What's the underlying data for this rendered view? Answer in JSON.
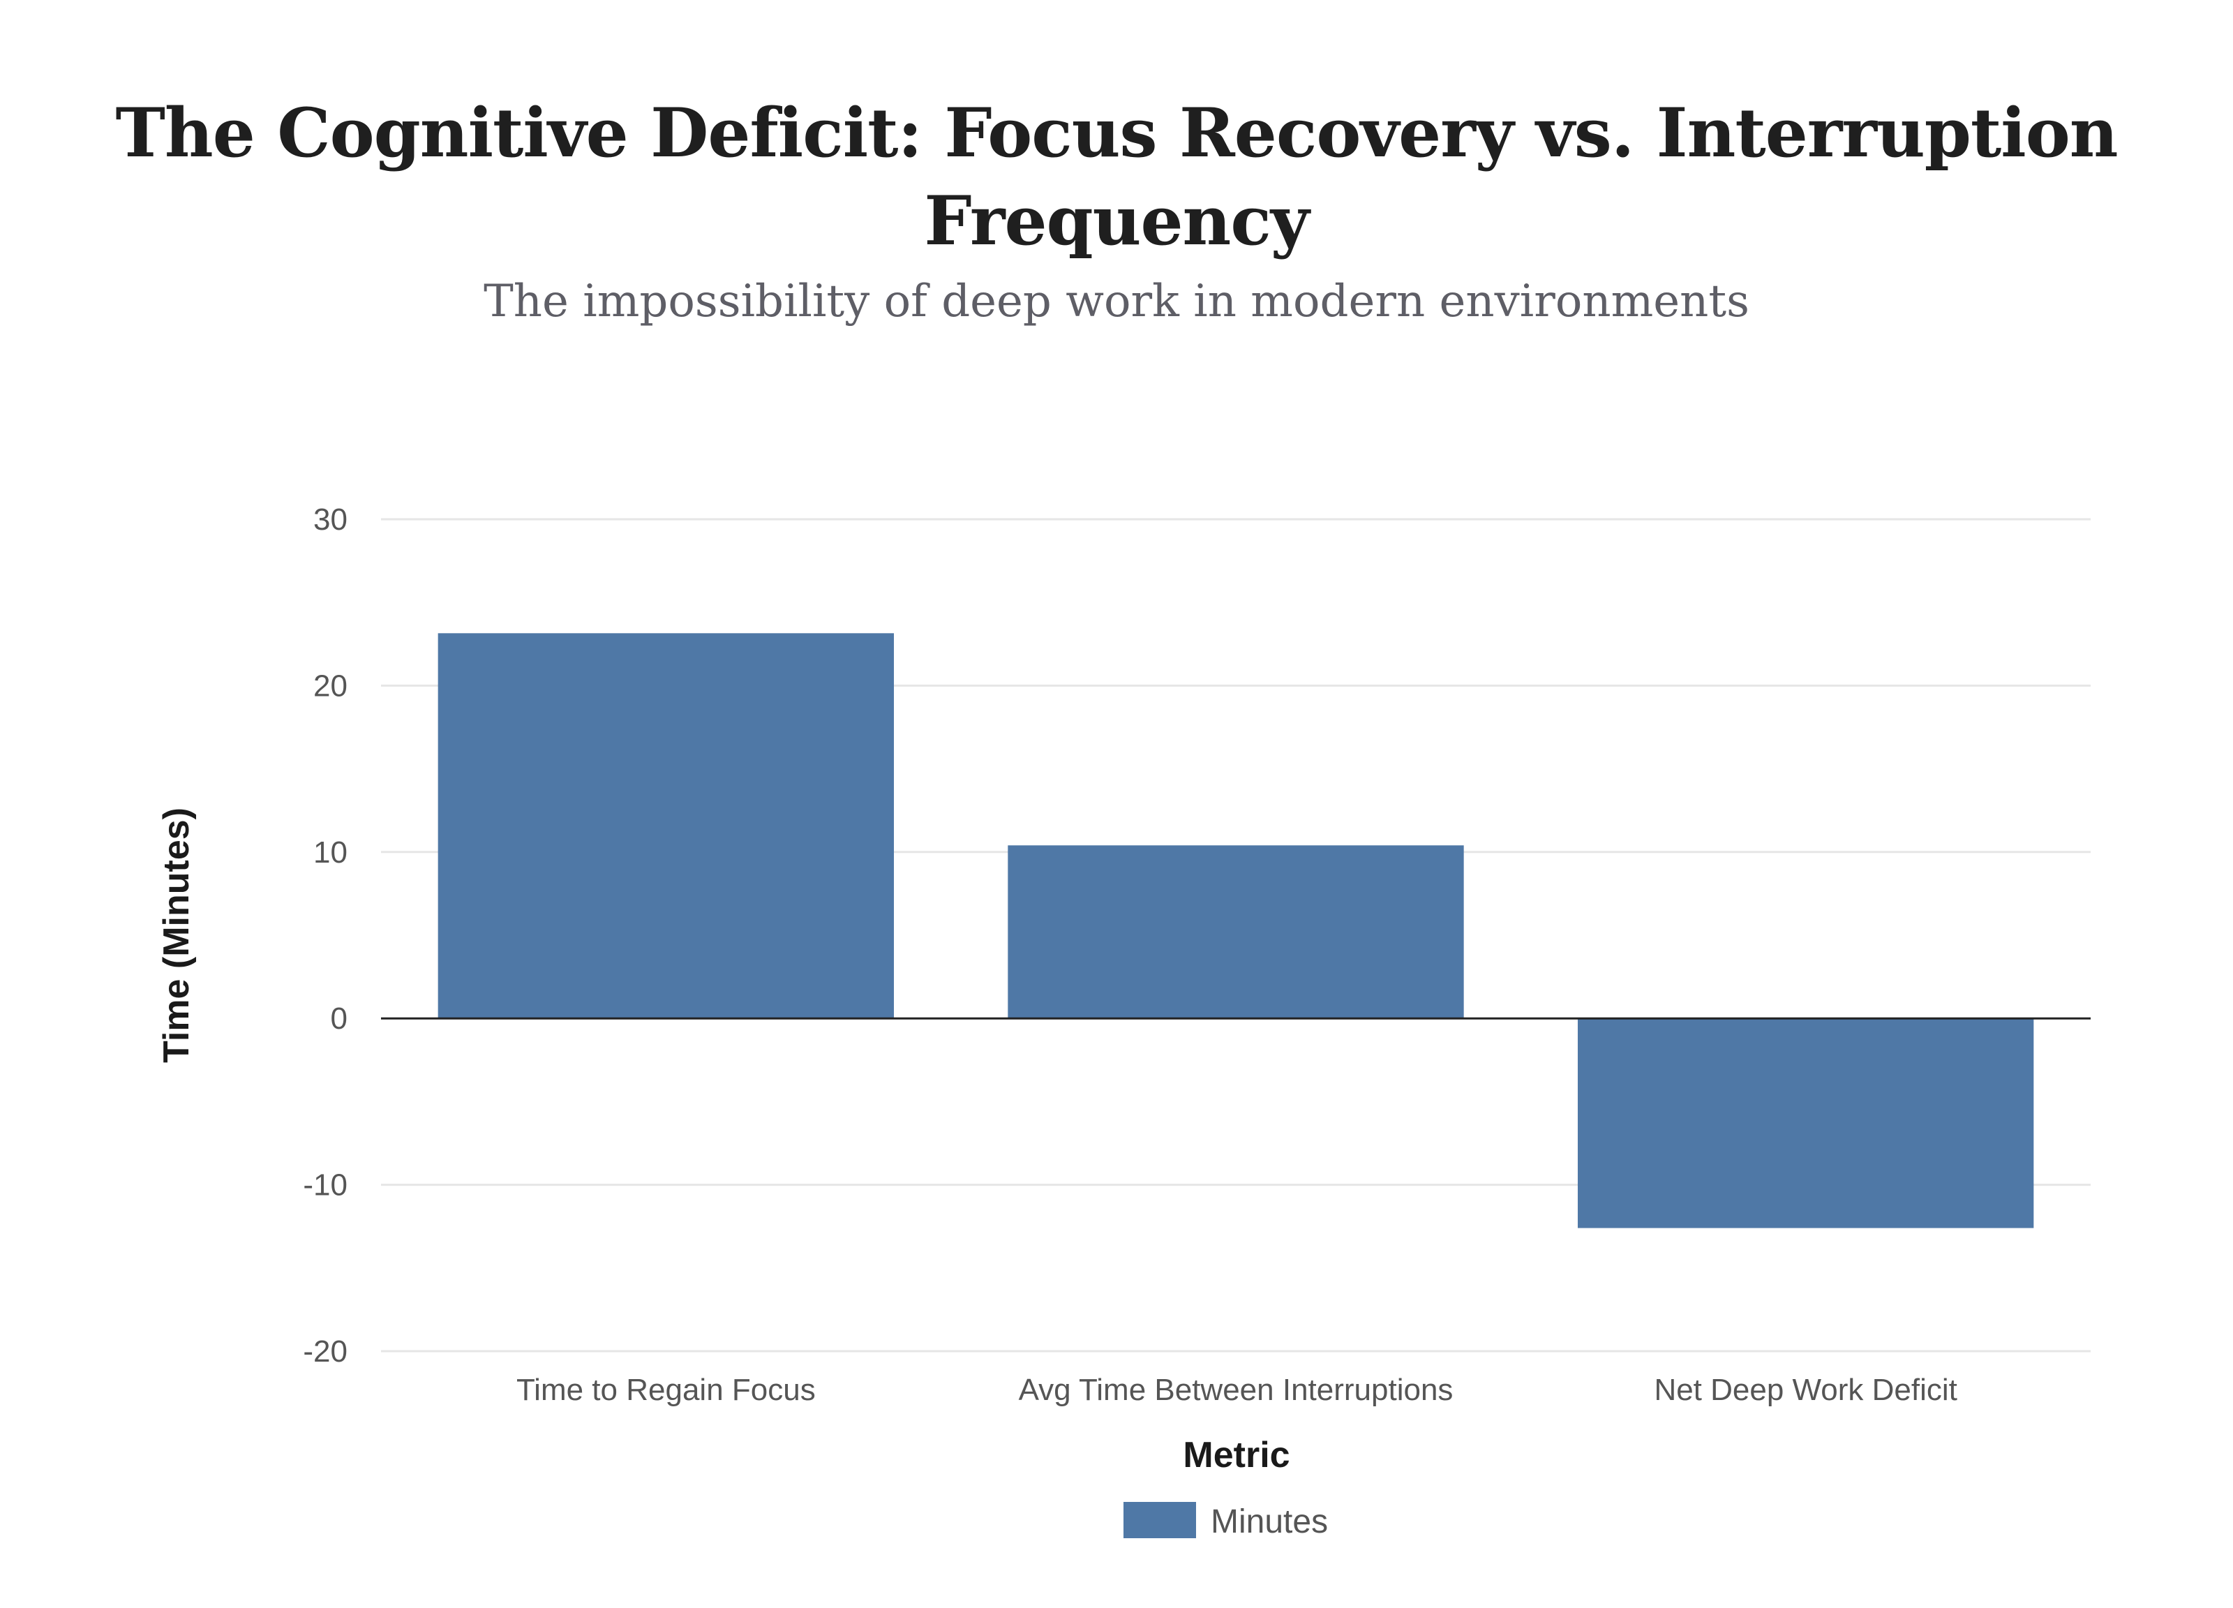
{
  "chart_data": {
    "type": "bar",
    "title": "The Cognitive Deficit: Focus Recovery vs. Interruption Frequency",
    "subtitle": "The impossibility of deep work in modern environments",
    "categories": [
      "Time to Regain Focus",
      "Avg Time Between Interruptions",
      "Net Deep Work Deficit"
    ],
    "series": [
      {
        "name": "Minutes",
        "values": [
          23.15,
          10.4,
          -12.6
        ],
        "color": "#4f78a6"
      }
    ],
    "xlabel": "Metric",
    "ylabel": "Time (Minutes)",
    "ylim": [
      -20,
      30
    ],
    "yticks": [
      30,
      20,
      10,
      0,
      -10,
      -20
    ],
    "ytick_labels": [
      "30",
      "20",
      "10",
      "0",
      "-10",
      "-20"
    ],
    "grid": true,
    "legend": "bottom-center"
  }
}
